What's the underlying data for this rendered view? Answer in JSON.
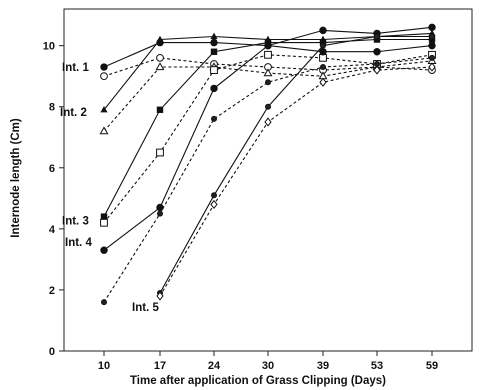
{
  "chart_data": {
    "type": "line",
    "title": "",
    "xlabel": "Time after application of Grass Clipping (Days)",
    "ylabel": "Internode length (Cm)",
    "categories": [
      "10",
      "17",
      "24",
      "30",
      "39",
      "53",
      "59"
    ],
    "ylim": [
      0,
      11.2
    ],
    "yticks": [
      "0",
      "2",
      "4",
      "6",
      "8",
      "10"
    ],
    "grid": false,
    "legend": "none",
    "annotations": [
      {
        "text": "Int. 1",
        "series": "1",
        "at": 0
      },
      {
        "text": "Int. 2",
        "series": "2",
        "at": 0
      },
      {
        "text": "Int. 3",
        "series": "3",
        "at": 0
      },
      {
        "text": "Int. 4",
        "series": "4",
        "at": 0
      },
      {
        "text": "Int. 5",
        "series": "5",
        "at": 0
      }
    ],
    "series": [
      {
        "group": "1",
        "style": "solid",
        "marker": "filled-circle",
        "values": [
          9.3,
          10.1,
          10.1,
          10.0,
          10.5,
          10.4,
          10.6
        ]
      },
      {
        "group": "1",
        "style": "dashed",
        "marker": "open-circle",
        "values": [
          9.0,
          9.6,
          9.4,
          9.3,
          9.2,
          9.3,
          9.2
        ]
      },
      {
        "group": "2",
        "style": "solid",
        "marker": "filled-triangle",
        "values": [
          7.9,
          10.2,
          10.3,
          10.2,
          10.2,
          10.3,
          10.4
        ]
      },
      {
        "group": "2",
        "style": "dashed",
        "marker": "open-triangle",
        "values": [
          7.2,
          9.3,
          9.3,
          9.1,
          9.0,
          9.3,
          9.5
        ]
      },
      {
        "group": "3",
        "style": "solid",
        "marker": "filled-square",
        "values": [
          4.4,
          7.9,
          9.8,
          10.1,
          10.1,
          10.2,
          10.2
        ]
      },
      {
        "group": "3",
        "style": "dashed",
        "marker": "open-square",
        "values": [
          4.2,
          6.5,
          9.2,
          9.7,
          9.6,
          9.4,
          9.7
        ]
      },
      {
        "group": "4",
        "style": "solid",
        "marker": "filled-circle",
        "values": [
          3.3,
          4.7,
          8.6,
          10.0,
          9.8,
          9.8,
          10.0
        ]
      },
      {
        "group": "4",
        "style": "dashed",
        "marker": "filled-circle-small",
        "values": [
          1.6,
          4.5,
          7.6,
          8.8,
          9.3,
          9.4,
          9.6
        ]
      },
      {
        "group": "5",
        "style": "solid",
        "marker": "filled-circle-small",
        "values": [
          null,
          1.9,
          5.1,
          8.0,
          10.0,
          10.3,
          10.3
        ]
      },
      {
        "group": "5",
        "style": "dashed",
        "marker": "open-diamond",
        "values": [
          null,
          1.8,
          4.8,
          7.5,
          8.8,
          9.2,
          9.3
        ]
      }
    ]
  }
}
